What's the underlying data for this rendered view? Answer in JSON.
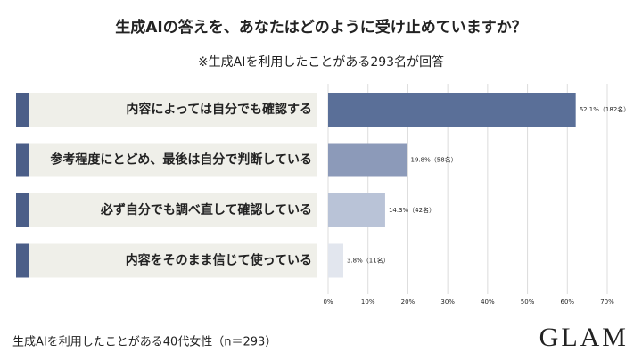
{
  "chart_data": {
    "type": "bar",
    "orientation": "horizontal",
    "title": "生成AIの答えを、あなたはどのように受け止めていますか？",
    "subtitle": "※生成AIを利用したことがある293名が回答",
    "categories": [
      "内容によっては自分でも確認する",
      "参考程度にとどめ、最後は自分で判断している",
      "必ず自分でも調べ直して確認している",
      "内容をそのまま信じて使っている"
    ],
    "values": [
      62.1,
      19.8,
      14.3,
      3.8
    ],
    "value_labels": [
      "62.1%（182名）",
      "19.8%（58名）",
      "14.3%（42名）",
      "3.8%（11名）"
    ],
    "colors": [
      "#5a6f98",
      "#8c9ab9",
      "#b9c3d7",
      "#e2e6ee"
    ],
    "xlim": [
      0,
      70
    ],
    "xticks": [
      {
        "value": 0,
        "label": "0%"
      },
      {
        "value": 10,
        "label": "10%"
      },
      {
        "value": 20,
        "label": "20%"
      },
      {
        "value": 30,
        "label": "30%"
      },
      {
        "value": 40,
        "label": "40%"
      },
      {
        "value": 50,
        "label": "50%"
      },
      {
        "value": 60,
        "label": "60%"
      },
      {
        "value": 70,
        "label": "70%"
      }
    ],
    "grid": true
  },
  "footer": {
    "note": "生成AIを利用したことがある40代女性（n＝293）",
    "logo": "GLAM"
  }
}
